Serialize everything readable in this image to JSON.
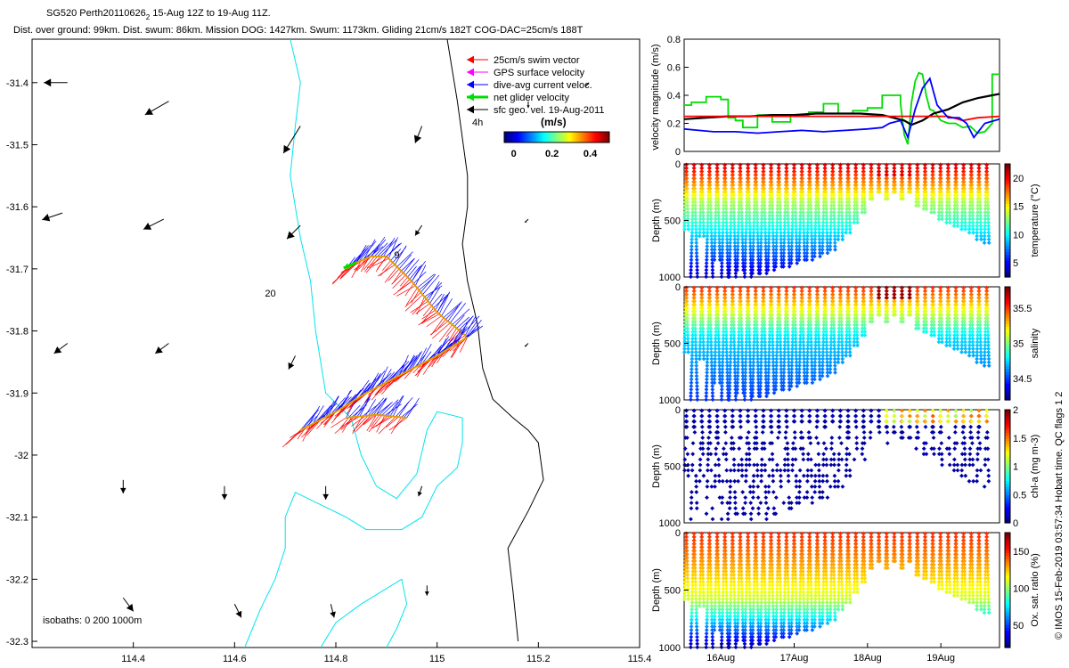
{
  "header": {
    "line1": "SG520 Perth20110626",
    "line1_sub": "2",
    "line1_rest": " 15-Aug 12Z to 19-Aug 11Z.",
    "line2": "Dist. over ground: 99km. Dist. swum: 86km. Mission DOG: 1427km. Swum: 1173km. Gliding 21cm/s 182T COG-DAC=25cm/s 188T"
  },
  "side_note": "© IMOS 15-Feb-2019 03:57:34 Hobart time. QC flags 1  2",
  "colors": {
    "coast": "#000000",
    "isobath": "#00e5ee",
    "swim": "#ff0000",
    "gps": "#ff00ff",
    "dac": "#0000ff",
    "net": "#00dd00",
    "sfc": "#000000"
  },
  "chart_data": [
    {
      "type": "scatter",
      "name": "map",
      "xlabel": "",
      "ylabel": "",
      "xlim": [
        114.2,
        115.4
      ],
      "ylim": [
        -32.31,
        -31.33
      ],
      "x_ticks": [
        "114.4",
        "114.6",
        "114.8",
        "115",
        "115.2",
        "115.4"
      ],
      "x_tick_vals": [
        114.4,
        114.6,
        114.8,
        115.0,
        115.2,
        115.4
      ],
      "y_ticks": [
        "-31.4",
        "-31.5",
        "-31.6",
        "-31.7",
        "-31.8",
        "-31.9",
        "-32",
        "-32.1",
        "-32.2",
        "-32.3"
      ],
      "y_tick_vals": [
        -31.4,
        -31.5,
        -31.6,
        -31.7,
        -31.8,
        -31.9,
        -32.0,
        -32.1,
        -32.2,
        -32.3
      ],
      "legend": [
        {
          "label": "25cm/s swim vector",
          "color_key": "swim"
        },
        {
          "label": "GPS surface velocity",
          "color_key": "gps"
        },
        {
          "label": "dive-avg current veloc.",
          "color_key": "dac"
        },
        {
          "label": "net glider velocity",
          "color_key": "net"
        },
        {
          "label": "sfc geo. vel. 19-Aug-2011",
          "color_key": "sfc"
        }
      ],
      "legend_placement": "top-right",
      "colorbar": {
        "label": "(m/s)",
        "ticks": [
          "0",
          "0.2",
          "0.4"
        ],
        "range": [
          -0.05,
          0.5
        ],
        "note": "4h"
      },
      "annotations": [
        {
          "text": "9",
          "x": 114.915,
          "y": -31.683
        },
        {
          "text": "20",
          "x": 114.66,
          "y": -31.745
        }
      ],
      "isobath_note": "isobaths: 0   200   1000m",
      "coastline": [
        [
          115.02,
          -31.33
        ],
        [
          115.04,
          -31.43
        ],
        [
          115.06,
          -31.55
        ],
        [
          115.06,
          -31.6
        ],
        [
          115.05,
          -31.66
        ],
        [
          115.06,
          -31.72
        ],
        [
          115.08,
          -31.79
        ],
        [
          115.09,
          -31.86
        ],
        [
          115.11,
          -31.91
        ],
        [
          115.15,
          -31.94
        ],
        [
          115.18,
          -31.96
        ],
        [
          115.2,
          -31.98
        ],
        [
          115.21,
          -32.04
        ],
        [
          115.18,
          -32.09
        ],
        [
          115.14,
          -32.15
        ],
        [
          115.15,
          -32.22
        ],
        [
          115.16,
          -32.3
        ]
      ],
      "isobath_200": [
        [
          114.71,
          -31.33
        ],
        [
          114.73,
          -31.4
        ],
        [
          114.72,
          -31.47
        ],
        [
          114.71,
          -31.55
        ],
        [
          114.72,
          -31.6
        ],
        [
          114.73,
          -31.65
        ],
        [
          114.75,
          -31.72
        ],
        [
          114.76,
          -31.8
        ],
        [
          114.78,
          -31.9
        ],
        [
          114.83,
          -31.94
        ],
        [
          114.85,
          -32.0
        ],
        [
          114.88,
          -32.05
        ],
        [
          114.92,
          -32.07
        ],
        [
          114.96,
          -32.03
        ],
        [
          114.98,
          -31.96
        ],
        [
          115.0,
          -31.93
        ],
        [
          115.05,
          -31.94
        ],
        [
          115.05,
          -31.98
        ],
        [
          115.04,
          -32.02
        ],
        [
          115.0,
          -32.05
        ],
        [
          114.97,
          -32.1
        ],
        [
          114.93,
          -32.12
        ],
        [
          114.86,
          -32.12
        ],
        [
          114.82,
          -32.1
        ],
        [
          114.77,
          -32.08
        ],
        [
          114.72,
          -32.06
        ],
        [
          114.7,
          -32.1
        ],
        [
          114.7,
          -32.15
        ],
        [
          114.68,
          -32.2
        ],
        [
          114.65,
          -32.25
        ],
        [
          114.62,
          -32.31
        ]
      ],
      "isobath_200b": [
        [
          114.77,
          -32.31
        ],
        [
          114.8,
          -32.27
        ],
        [
          114.85,
          -32.24
        ],
        [
          114.89,
          -32.22
        ],
        [
          114.93,
          -32.2
        ],
        [
          114.94,
          -32.24
        ],
        [
          114.92,
          -32.28
        ],
        [
          114.9,
          -32.31
        ]
      ],
      "glider_tracks": [
        [
          [
            114.9,
            -31.68
          ],
          [
            114.87,
            -31.68
          ],
          [
            114.84,
            -31.69
          ],
          [
            114.82,
            -31.7
          ]
        ],
        [
          [
            114.9,
            -31.68
          ],
          [
            114.95,
            -31.72
          ],
          [
            115.0,
            -31.77
          ],
          [
            115.06,
            -31.81
          ]
        ],
        [
          [
            115.06,
            -31.81
          ],
          [
            115.0,
            -31.84
          ],
          [
            114.93,
            -31.87
          ],
          [
            114.86,
            -31.9
          ],
          [
            114.8,
            -31.93
          ],
          [
            114.73,
            -31.96
          ]
        ],
        [
          [
            114.82,
            -31.94
          ],
          [
            114.88,
            -31.935
          ],
          [
            114.94,
            -31.94
          ]
        ]
      ],
      "sfc_geo_vectors": [
        {
          "x": 114.27,
          "y": -31.4,
          "u": 0.07,
          "v": 0.0
        },
        {
          "x": 114.47,
          "y": -31.43,
          "u": 0.07,
          "v": 0.04
        },
        {
          "x": 114.73,
          "y": -31.47,
          "u": 0.05,
          "v": 0.08
        },
        {
          "x": 114.97,
          "y": -31.47,
          "u": 0.02,
          "v": 0.05
        },
        {
          "x": 115.18,
          "y": -31.43,
          "u": 0.0,
          "v": 0.02
        },
        {
          "x": 115.3,
          "y": -31.4,
          "u": 0.01,
          "v": 0.01
        },
        {
          "x": 114.26,
          "y": -31.61,
          "u": 0.06,
          "v": 0.02
        },
        {
          "x": 114.46,
          "y": -31.62,
          "u": 0.06,
          "v": 0.03
        },
        {
          "x": 114.73,
          "y": -31.63,
          "u": 0.04,
          "v": 0.04
        },
        {
          "x": 114.97,
          "y": -31.63,
          "u": 0.02,
          "v": 0.03
        },
        {
          "x": 115.18,
          "y": -31.62,
          "u": 0.01,
          "v": 0.01
        },
        {
          "x": 114.27,
          "y": -31.82,
          "u": 0.04,
          "v": 0.03
        },
        {
          "x": 114.47,
          "y": -31.82,
          "u": 0.04,
          "v": 0.03
        },
        {
          "x": 114.72,
          "y": -31.84,
          "u": 0.02,
          "v": 0.04
        },
        {
          "x": 115.18,
          "y": -31.82,
          "u": 0.01,
          "v": 0.01
        },
        {
          "x": 114.38,
          "y": -32.04,
          "u": 0.0,
          "v": 0.04
        },
        {
          "x": 114.58,
          "y": -32.05,
          "u": 0.0,
          "v": 0.04
        },
        {
          "x": 114.78,
          "y": -32.05,
          "u": 0.0,
          "v": 0.04
        },
        {
          "x": 114.97,
          "y": -32.05,
          "u": 0.01,
          "v": 0.03
        },
        {
          "x": 115.18,
          "y": -32.01,
          "u": 0.0,
          "v": 0.0
        },
        {
          "x": 114.38,
          "y": -32.23,
          "u": -0.03,
          "v": 0.04
        },
        {
          "x": 114.6,
          "y": -32.24,
          "u": -0.02,
          "v": 0.04
        },
        {
          "x": 114.79,
          "y": -32.24,
          "u": -0.01,
          "v": 0.04
        },
        {
          "x": 114.98,
          "y": -32.21,
          "u": 0.0,
          "v": 0.03
        },
        {
          "x": 115.2,
          "y": -32.2,
          "u": 0.0,
          "v": 0.0
        }
      ]
    },
    {
      "type": "line",
      "name": "velocity",
      "xlabel": "",
      "ylabel": "velocity magnitude (m/s)",
      "xlim": [
        0,
        4.3
      ],
      "ylim": [
        0,
        0.8
      ],
      "y_ticks": [
        "0",
        "0.2",
        "0.4",
        "0.6",
        "0.8"
      ],
      "y_tick_vals": [
        0,
        0.2,
        0.4,
        0.6,
        0.8
      ],
      "series": [
        {
          "color_key": "net",
          "x": [
            0,
            0.1,
            0.1,
            0.3,
            0.3,
            0.5,
            0.5,
            0.6,
            0.6,
            0.7,
            0.7,
            0.8,
            0.8,
            1.0,
            1.0,
            1.2,
            1.2,
            1.45,
            1.45,
            1.7,
            1.7,
            1.9,
            1.9,
            2.1,
            2.1,
            2.3,
            2.3,
            2.5,
            2.5,
            2.7,
            2.7,
            2.95,
            2.95,
            3.0,
            3.05,
            3.1,
            3.15,
            3.2,
            3.25,
            3.3,
            3.35,
            3.4,
            3.5,
            3.6,
            3.7,
            3.8,
            3.9,
            4.0,
            4.1,
            4.2,
            4.2,
            4.3
          ],
          "y": [
            0.33,
            0.33,
            0.35,
            0.35,
            0.39,
            0.39,
            0.37,
            0.37,
            0.24,
            0.24,
            0.22,
            0.22,
            0.17,
            0.17,
            0.26,
            0.26,
            0.21,
            0.21,
            0.26,
            0.26,
            0.28,
            0.28,
            0.34,
            0.34,
            0.27,
            0.27,
            0.29,
            0.29,
            0.31,
            0.31,
            0.4,
            0.4,
            0.34,
            0.12,
            0.05,
            0.35,
            0.5,
            0.56,
            0.55,
            0.4,
            0.3,
            0.29,
            0.22,
            0.2,
            0.2,
            0.17,
            0.18,
            0.13,
            0.14,
            0.2,
            0.55,
            0.55
          ]
        },
        {
          "color_key": "sfc",
          "x": [
            0,
            0.3,
            0.6,
            0.9,
            1.2,
            1.5,
            1.8,
            2.1,
            2.4,
            2.7,
            3.0,
            3.1,
            3.25,
            3.4,
            3.6,
            3.8,
            4.0,
            4.2,
            4.3
          ],
          "y": [
            0.23,
            0.24,
            0.25,
            0.25,
            0.26,
            0.26,
            0.27,
            0.27,
            0.27,
            0.26,
            0.22,
            0.19,
            0.22,
            0.27,
            0.3,
            0.35,
            0.38,
            0.4,
            0.41
          ]
        },
        {
          "color_key": "swim",
          "x": [
            0,
            0.5,
            1,
            1.5,
            2,
            2.5,
            2.9,
            3.0,
            3.15,
            3.3,
            3.6,
            3.8,
            4.0,
            4.3
          ],
          "y": [
            0.25,
            0.25,
            0.25,
            0.25,
            0.25,
            0.25,
            0.25,
            0.25,
            0.25,
            0.25,
            0.25,
            0.22,
            0.24,
            0.25
          ]
        },
        {
          "color_key": "dac",
          "x": [
            0,
            0.2,
            0.4,
            0.7,
            1.0,
            1.3,
            1.6,
            1.9,
            2.2,
            2.5,
            2.7,
            2.8,
            2.95,
            3.05,
            3.15,
            3.25,
            3.35,
            3.45,
            3.6,
            3.75,
            3.85,
            3.95,
            4.1,
            4.3
          ],
          "y": [
            0.16,
            0.15,
            0.14,
            0.14,
            0.13,
            0.14,
            0.15,
            0.14,
            0.15,
            0.16,
            0.17,
            0.2,
            0.22,
            0.1,
            0.3,
            0.45,
            0.52,
            0.33,
            0.24,
            0.24,
            0.2,
            0.1,
            0.2,
            0.23
          ]
        }
      ]
    },
    {
      "type": "scatter",
      "name": "temperature",
      "xlabel": "",
      "ylabel": "Depth (m)",
      "xlim": [
        0,
        4.3
      ],
      "ylim": [
        1000,
        0
      ],
      "y_ticks": [
        "0",
        "500",
        "1000"
      ],
      "y_tick_vals": [
        0,
        500,
        1000
      ],
      "colorbar": {
        "label": "temperature (°C)",
        "ticks": [
          "5",
          "10",
          "15",
          "20"
        ],
        "tick_vals": [
          5,
          10,
          15,
          20
        ],
        "range": [
          2.5,
          22.5
        ]
      },
      "colormap": "jet",
      "profile_profile": "temperature"
    },
    {
      "type": "scatter",
      "name": "salinity",
      "xlabel": "",
      "ylabel": "Depth (m)",
      "xlim": [
        0,
        4.3
      ],
      "ylim": [
        1000,
        0
      ],
      "y_ticks": [
        "0",
        "500",
        "1000"
      ],
      "y_tick_vals": [
        0,
        500,
        1000
      ],
      "colorbar": {
        "label": "salinity",
        "ticks": [
          "34.5",
          "35",
          "35.5"
        ],
        "tick_vals": [
          34.5,
          35,
          35.5
        ],
        "range": [
          34.2,
          35.8
        ]
      },
      "colormap": "jet",
      "profile_profile": "salinity"
    },
    {
      "type": "scatter",
      "name": "chl",
      "xlabel": "",
      "ylabel": "Depth (m)",
      "xlim": [
        0,
        4.3
      ],
      "ylim": [
        1000,
        0
      ],
      "y_ticks": [
        "0",
        "500",
        "1000"
      ],
      "y_tick_vals": [
        0,
        500,
        1000
      ],
      "colorbar": {
        "label": "chl-a (mg m-3)",
        "ticks": [
          "0",
          "0.5",
          "1",
          "1.5",
          "2"
        ],
        "tick_vals": [
          0,
          0.5,
          1,
          1.5,
          2
        ],
        "range": [
          0,
          2
        ]
      },
      "colormap": "jet",
      "profile_profile": "chl"
    },
    {
      "type": "scatter",
      "name": "oxygen",
      "xlabel": "",
      "ylabel": "Depth (m)",
      "xlim": [
        0,
        4.3
      ],
      "ylim": [
        1000,
        0
      ],
      "y_ticks": [
        "0",
        "500",
        "1000"
      ],
      "y_tick_vals": [
        0,
        500,
        1000
      ],
      "x_ticks": [
        "16Aug",
        "17Aug",
        "18Aug",
        "19Aug"
      ],
      "x_tick_vals": [
        0.5,
        1.5,
        2.5,
        3.5
      ],
      "colorbar": {
        "label": "Ox. sat. ratio (%)",
        "ticks": [
          "50",
          "100",
          "150"
        ],
        "tick_vals": [
          50,
          100,
          150
        ],
        "range": [
          20,
          175
        ]
      },
      "colormap": "jet",
      "profile_profile": "oxygen"
    }
  ]
}
